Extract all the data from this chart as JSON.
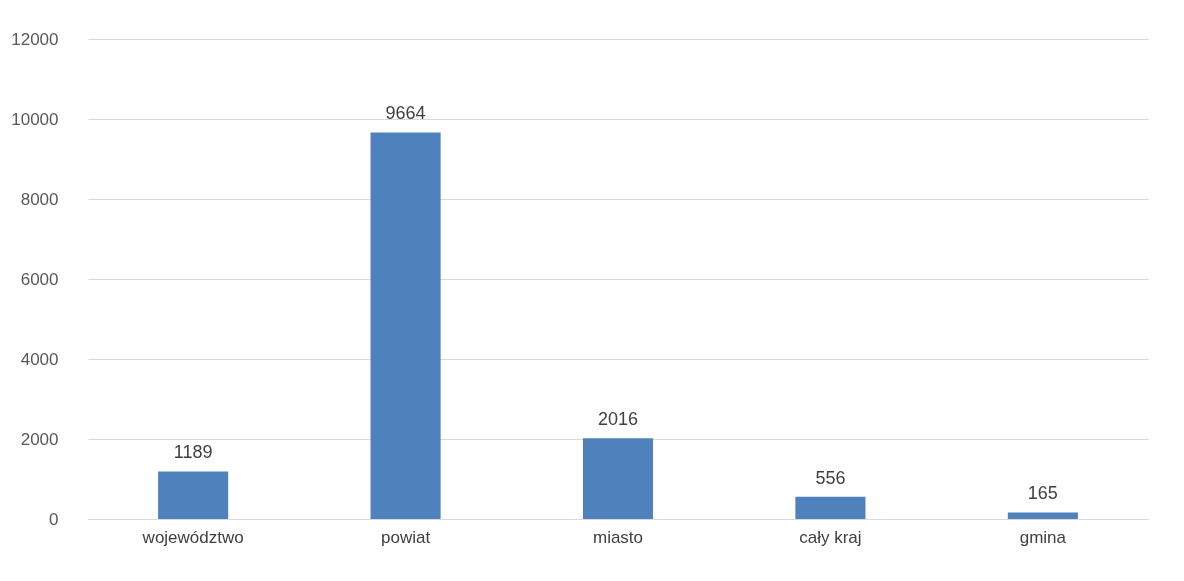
{
  "chart_data": {
    "type": "bar",
    "categories": [
      "województwo",
      "powiat",
      "miasto",
      "cały kraj",
      "gmina"
    ],
    "values": [
      1189,
      9664,
      2016,
      556,
      165
    ],
    "color": "#4f81bd",
    "ylim": [
      0,
      12000
    ],
    "yticks": [
      0,
      2000,
      4000,
      6000,
      8000,
      10000,
      12000
    ],
    "grid": "y",
    "data_labels": true
  }
}
